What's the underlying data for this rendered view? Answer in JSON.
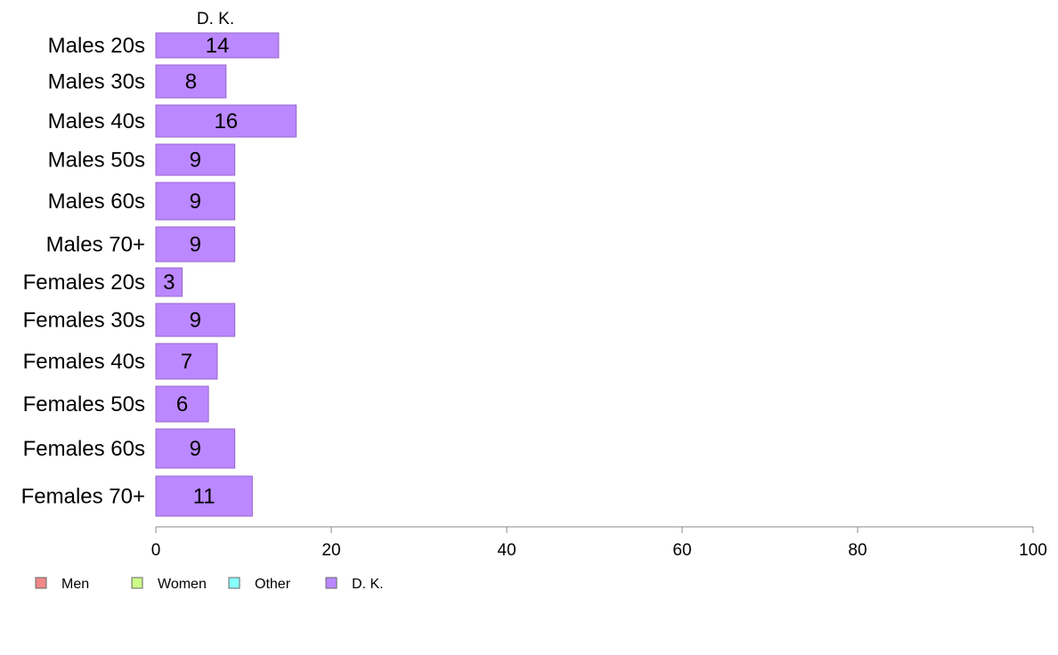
{
  "chart_data": {
    "type": "bar",
    "orientation": "horizontal",
    "column_title": "D. K.",
    "categories": [
      "Males 20s",
      "Males 30s",
      "Males 40s",
      "Males 50s",
      "Males 60s",
      "Males 70+",
      "Females 20s",
      "Females 30s",
      "Females 40s",
      "Females 50s",
      "Females 60s",
      "Females 70+"
    ],
    "series": [
      {
        "name": "D. K.",
        "color": "#bb88ff",
        "values": [
          14,
          8,
          16,
          9,
          9,
          9,
          3,
          9,
          7,
          6,
          9,
          11
        ]
      }
    ],
    "xlim": [
      0,
      100
    ],
    "x_ticks": [
      "0",
      "20",
      "40",
      "60",
      "80",
      "100"
    ],
    "legend": [
      {
        "label": "Men",
        "color": "#f08888"
      },
      {
        "label": "Women",
        "color": "#ccff88"
      },
      {
        "label": "Other",
        "color": "#88ffff"
      },
      {
        "label": "D. K.",
        "color": "#bb88ff"
      }
    ],
    "legend_position": "bottom-left",
    "grid": false
  }
}
